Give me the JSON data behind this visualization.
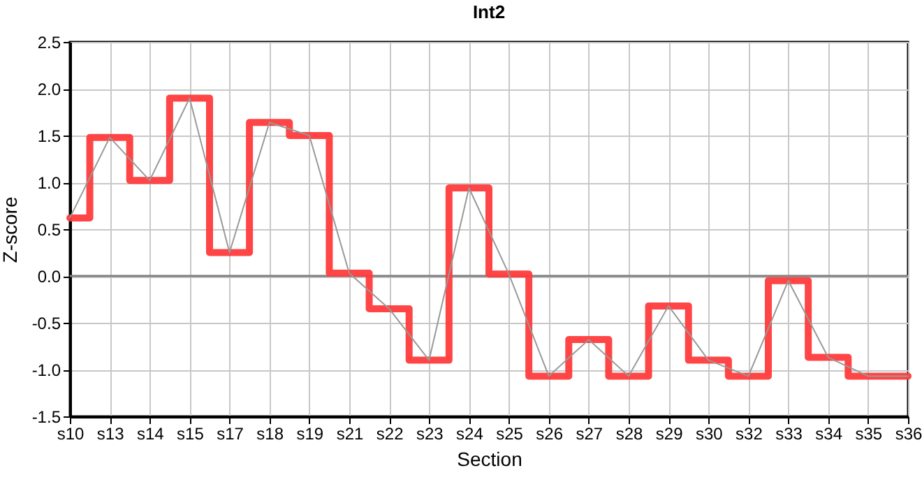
{
  "chart_data": {
    "type": "line",
    "title": "Int2",
    "xlabel": "Section",
    "ylabel": "Z-score",
    "categories": [
      "s10",
      "s13",
      "s14",
      "s15",
      "s17",
      "s18",
      "s19",
      "s21",
      "s22",
      "s23",
      "s24",
      "s25",
      "s26",
      "s27",
      "s28",
      "s29",
      "s30",
      "s32",
      "s33",
      "s34",
      "s35",
      "s36"
    ],
    "series": [
      {
        "type": "step",
        "color": "#ff3b3b",
        "values": [
          0.62,
          1.48,
          1.02,
          1.9,
          0.25,
          1.64,
          1.5,
          0.03,
          -0.35,
          -0.9,
          0.94,
          0.02,
          -1.07,
          -0.68,
          -1.07,
          -0.32,
          -0.9,
          -1.07,
          -0.05,
          -0.87,
          -1.07,
          -1.07
        ]
      },
      {
        "type": "line",
        "color": "#999999",
        "values": [
          0.62,
          1.48,
          1.02,
          1.9,
          0.25,
          1.64,
          1.5,
          0.03,
          -0.35,
          -0.9,
          0.94,
          0.02,
          -1.07,
          -0.68,
          -1.07,
          -0.32,
          -0.9,
          -1.07,
          -0.05,
          -0.87,
          -1.07,
          -1.07
        ]
      }
    ],
    "ylim": [
      -1.5,
      2.5
    ],
    "yticks": [
      {
        "value": -1.5,
        "label": "-1.5"
      },
      {
        "value": -1,
        "label": "-1.0"
      },
      {
        "value": -0.5,
        "label": "-0.5"
      },
      {
        "value": 0,
        "label": "0.0"
      },
      {
        "value": 0.5,
        "label": "0.5"
      },
      {
        "value": 1,
        "label": "1.0"
      },
      {
        "value": 1.5,
        "label": "1.5"
      },
      {
        "value": 2,
        "label": "2.0"
      },
      {
        "value": 2.5,
        "label": "2.5"
      }
    ],
    "grid": true,
    "ref_lines": [
      {
        "axis": "y",
        "value": 0,
        "color": "#808080"
      }
    ]
  }
}
